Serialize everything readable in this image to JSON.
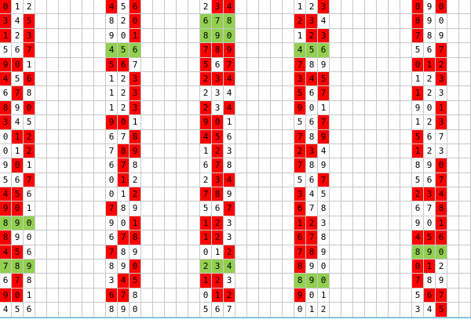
{
  "colors": {
    "red": "#ff0000",
    "green": "#92d050",
    "grid": "#c8c8c8",
    "bottom_rule": "#4fc3f7"
  },
  "groups": [
    {
      "name": "g1",
      "rows": [
        {
          "d": [
            "0",
            "1",
            "2"
          ],
          "r": [
            0
          ]
        },
        {
          "d": [
            "3",
            "4",
            "5"
          ],
          "r": [
            0,
            2
          ]
        },
        {
          "d": [
            "1",
            "2",
            "3"
          ],
          "r": [
            0,
            2
          ]
        },
        {
          "d": [
            "5",
            "6",
            "7"
          ],
          "r": [
            2
          ]
        },
        {
          "d": [
            "9",
            "0",
            "1"
          ],
          "r": [
            0,
            1
          ]
        },
        {
          "d": [
            "4",
            "5",
            "6"
          ],
          "r": [
            0,
            2
          ]
        },
        {
          "d": [
            "6",
            "7",
            "8"
          ],
          "r": [
            1
          ]
        },
        {
          "d": [
            "8",
            "9",
            "0"
          ],
          "r": [
            0,
            2
          ]
        },
        {
          "d": [
            "3",
            "4",
            "5"
          ],
          "r": [
            0
          ]
        },
        {
          "d": [
            "0",
            "1",
            "2"
          ],
          "r": [
            1,
            2
          ]
        },
        {
          "d": [
            "0",
            "1",
            "2"
          ],
          "r": [
            2
          ]
        },
        {
          "d": [
            "9",
            "0",
            "1"
          ],
          "r": [
            1
          ]
        },
        {
          "d": [
            "5",
            "6",
            "7"
          ],
          "r": [
            2
          ]
        },
        {
          "d": [
            "4",
            "5",
            "6"
          ],
          "r": [
            0,
            1
          ]
        },
        {
          "d": [
            "9",
            "0",
            "1"
          ],
          "r": [
            0,
            1
          ]
        },
        {
          "d": [
            "8",
            "9",
            "0"
          ],
          "g": true
        },
        {
          "d": [
            "8",
            "9",
            "0"
          ],
          "r": [
            0
          ]
        },
        {
          "d": [
            "4",
            "5",
            "6"
          ],
          "r": [
            0,
            1
          ]
        },
        {
          "d": [
            "7",
            "8",
            "9"
          ],
          "g": true
        },
        {
          "d": [
            "6",
            "7",
            "8"
          ],
          "r": [
            1
          ]
        },
        {
          "d": [
            "9",
            "0",
            "1"
          ],
          "r": [
            0,
            1
          ]
        },
        {
          "d": [
            "4",
            "5",
            "6"
          ],
          "r": []
        }
      ]
    },
    {
      "name": "g2",
      "rows": [
        {
          "d": [
            "4",
            "5",
            "6"
          ],
          "r": [
            0,
            2
          ]
        },
        {
          "d": [
            "8",
            "2",
            "0"
          ],
          "r": [
            2
          ]
        },
        {
          "d": [
            "9",
            "0",
            "1"
          ],
          "r": [
            2
          ]
        },
        {
          "d": [
            "4",
            "5",
            "6"
          ],
          "g": true
        },
        {
          "d": [
            "5",
            "6",
            "7"
          ],
          "r": [
            0,
            1
          ]
        },
        {
          "d": [
            "1",
            "2",
            "3"
          ],
          "r": [
            2
          ]
        },
        {
          "d": [
            "1",
            "2",
            "3"
          ],
          "r": [
            2
          ]
        },
        {
          "d": [
            "1",
            "2",
            "3"
          ],
          "r": [
            2
          ]
        },
        {
          "d": [
            "9",
            "0",
            "1"
          ],
          "r": [
            0,
            1
          ]
        },
        {
          "d": [
            "6",
            "7",
            "8"
          ],
          "r": [
            2
          ]
        },
        {
          "d": [
            "7",
            "8",
            "9"
          ],
          "r": [
            1,
            2
          ]
        },
        {
          "d": [
            "6",
            "7",
            "8"
          ],
          "r": [
            1
          ]
        },
        {
          "d": [
            "0",
            "1",
            "2"
          ],
          "r": [
            1
          ]
        },
        {
          "d": [
            "0",
            "1",
            "2"
          ],
          "r": [
            2
          ]
        },
        {
          "d": [
            "7",
            "8",
            "9"
          ],
          "r": [
            0
          ]
        },
        {
          "d": [
            "9",
            "0",
            "1"
          ],
          "r": [
            2
          ]
        },
        {
          "d": [
            "6",
            "7",
            "8"
          ],
          "r": [
            1,
            2
          ]
        },
        {
          "d": [
            "7",
            "8",
            "9"
          ],
          "r": [
            0
          ]
        },
        {
          "d": [
            "8",
            "9",
            "0"
          ],
          "r": [
            2
          ]
        },
        {
          "d": [
            "3",
            "4",
            "5"
          ],
          "r": [
            1,
            2
          ]
        },
        {
          "d": [
            "6",
            "7",
            "8"
          ],
          "r": [
            0,
            1
          ]
        },
        {
          "d": [
            "8",
            "9",
            "0"
          ],
          "r": []
        }
      ]
    },
    {
      "name": "g3",
      "rows": [
        {
          "d": [
            "2",
            "3",
            "4"
          ],
          "r": [
            1,
            2
          ]
        },
        {
          "d": [
            "6",
            "7",
            "8"
          ],
          "g": true
        },
        {
          "d": [
            "8",
            "9",
            "0"
          ],
          "g": true
        },
        {
          "d": [
            "7",
            "8",
            "9"
          ],
          "r": [
            0,
            1,
            2
          ]
        },
        {
          "d": [
            "5",
            "6",
            "7"
          ],
          "r": [
            0,
            2
          ]
        },
        {
          "d": [
            "2",
            "3",
            "4"
          ],
          "r": [
            0,
            1,
            2
          ]
        },
        {
          "d": [
            "2",
            "3",
            "4"
          ],
          "r": []
        },
        {
          "d": [
            "2",
            "3",
            "4"
          ],
          "r": [
            0,
            2
          ]
        },
        {
          "d": [
            "9",
            "0",
            "1"
          ],
          "r": [
            0,
            1
          ]
        },
        {
          "d": [
            "4",
            "5",
            "6"
          ],
          "r": [
            0,
            1
          ]
        },
        {
          "d": [
            "1",
            "2",
            "3"
          ],
          "r": [
            1
          ]
        },
        {
          "d": [
            "6",
            "7",
            "8"
          ],
          "r": [
            1
          ]
        },
        {
          "d": [
            "2",
            "3",
            "4"
          ],
          "r": [
            1,
            2
          ]
        },
        {
          "d": [
            "7",
            "8",
            "9"
          ],
          "r": [
            0,
            1
          ]
        },
        {
          "d": [
            "5",
            "6",
            "7"
          ],
          "r": [
            2
          ]
        },
        {
          "d": [
            "1",
            "2",
            "3"
          ],
          "r": [
            0,
            1
          ]
        },
        {
          "d": [
            "1",
            "2",
            "3"
          ],
          "r": [
            0,
            1
          ]
        },
        {
          "d": [
            "0",
            "1",
            "2"
          ],
          "r": [
            2
          ]
        },
        {
          "d": [
            "2",
            "3",
            "4"
          ],
          "g": true
        },
        {
          "d": [
            "1",
            "2",
            "3"
          ],
          "r": [
            0,
            1
          ]
        },
        {
          "d": [
            "0",
            "1",
            "2"
          ],
          "r": [
            1,
            2
          ]
        },
        {
          "d": [
            "5",
            "6",
            "7"
          ],
          "r": []
        }
      ]
    },
    {
      "name": "g4",
      "rows": [
        {
          "d": [
            "1",
            "2",
            "3"
          ],
          "r": [
            2
          ]
        },
        {
          "d": [
            "2",
            "3",
            "4"
          ],
          "r": [
            0,
            1
          ]
        },
        {
          "d": [
            "1",
            "2",
            "3"
          ],
          "r": [
            1,
            2
          ]
        },
        {
          "d": [
            "4",
            "5",
            "6"
          ],
          "g": true
        },
        {
          "d": [
            "7",
            "8",
            "9"
          ],
          "r": [
            0
          ]
        },
        {
          "d": [
            "3",
            "4",
            "5"
          ],
          "r": [
            0,
            1,
            2
          ]
        },
        {
          "d": [
            "5",
            "6",
            "7"
          ],
          "r": [
            0,
            2
          ]
        },
        {
          "d": [
            "9",
            "0",
            "1"
          ],
          "r": [
            0
          ]
        },
        {
          "d": [
            "5",
            "6",
            "7"
          ],
          "r": [
            2
          ]
        },
        {
          "d": [
            "7",
            "8",
            "9"
          ],
          "r": [
            0,
            2
          ]
        },
        {
          "d": [
            "2",
            "3",
            "4"
          ],
          "r": [
            0,
            1
          ]
        },
        {
          "d": [
            "7",
            "8",
            "9"
          ],
          "r": [
            0
          ]
        },
        {
          "d": [
            "5",
            "6",
            "7"
          ],
          "r": [
            2
          ]
        },
        {
          "d": [
            "3",
            "4",
            "5"
          ],
          "r": [
            0
          ]
        },
        {
          "d": [
            "6",
            "7",
            "8"
          ],
          "r": [
            0
          ]
        },
        {
          "d": [
            "1",
            "2",
            "3"
          ],
          "r": [
            0,
            1
          ]
        },
        {
          "d": [
            "6",
            "7",
            "8"
          ],
          "r": [
            0,
            1
          ]
        },
        {
          "d": [
            "7",
            "8",
            "9"
          ],
          "r": [
            0,
            1
          ]
        },
        {
          "d": [
            "8",
            "9",
            "0"
          ],
          "r": [
            0
          ]
        },
        {
          "d": [
            "8",
            "9",
            "0"
          ],
          "g": true
        },
        {
          "d": [
            "9",
            "0",
            "1"
          ],
          "r": [
            0
          ]
        },
        {
          "d": [
            "0",
            "1",
            "2"
          ],
          "r": []
        }
      ]
    },
    {
      "name": "g5",
      "rows": [
        {
          "d": [
            "8",
            "9",
            "0"
          ],
          "r": [
            0,
            2
          ]
        },
        {
          "d": [
            "8",
            "9",
            "0"
          ],
          "r": [
            0
          ]
        },
        {
          "d": [
            "7",
            "8",
            "9"
          ],
          "r": [
            0
          ]
        },
        {
          "d": [
            "5",
            "6",
            "7"
          ],
          "r": [
            2
          ]
        },
        {
          "d": [
            "0",
            "1",
            "2"
          ],
          "r": [
            0,
            1,
            2
          ]
        },
        {
          "d": [
            "1",
            "2",
            "3"
          ],
          "r": [
            2
          ]
        },
        {
          "d": [
            "1",
            "2",
            "3"
          ],
          "r": [
            0
          ]
        },
        {
          "d": [
            "9",
            "0",
            "1"
          ],
          "r": [
            2
          ]
        },
        {
          "d": [
            "1",
            "2",
            "3"
          ],
          "r": [
            2
          ]
        },
        {
          "d": [
            "5",
            "6",
            "7"
          ],
          "r": [
            0
          ]
        },
        {
          "d": [
            "1",
            "2",
            "3"
          ],
          "r": [
            0
          ]
        },
        {
          "d": [
            "8",
            "9",
            "0"
          ],
          "r": [
            2
          ]
        },
        {
          "d": [
            "5",
            "6",
            "7"
          ],
          "r": [
            2
          ]
        },
        {
          "d": [
            "2",
            "3",
            "4"
          ],
          "r": [
            0,
            1,
            2
          ]
        },
        {
          "d": [
            "6",
            "7",
            "8"
          ],
          "r": [
            2
          ]
        },
        {
          "d": [
            "9",
            "0",
            "1"
          ],
          "r": [
            2
          ]
        },
        {
          "d": [
            "4",
            "5",
            "6"
          ],
          "r": [
            0,
            1,
            2
          ]
        },
        {
          "d": [
            "8",
            "9",
            "0"
          ],
          "g": true
        },
        {
          "d": [
            "0",
            "1",
            "2"
          ],
          "r": [
            0,
            1
          ]
        },
        {
          "d": [
            "7",
            "8",
            "9"
          ],
          "r": [
            0
          ]
        },
        {
          "d": [
            "5",
            "6",
            "7"
          ],
          "r": [
            1,
            2
          ]
        },
        {
          "d": [
            "3",
            "4",
            "5"
          ],
          "r": [
            2
          ]
        }
      ]
    }
  ]
}
